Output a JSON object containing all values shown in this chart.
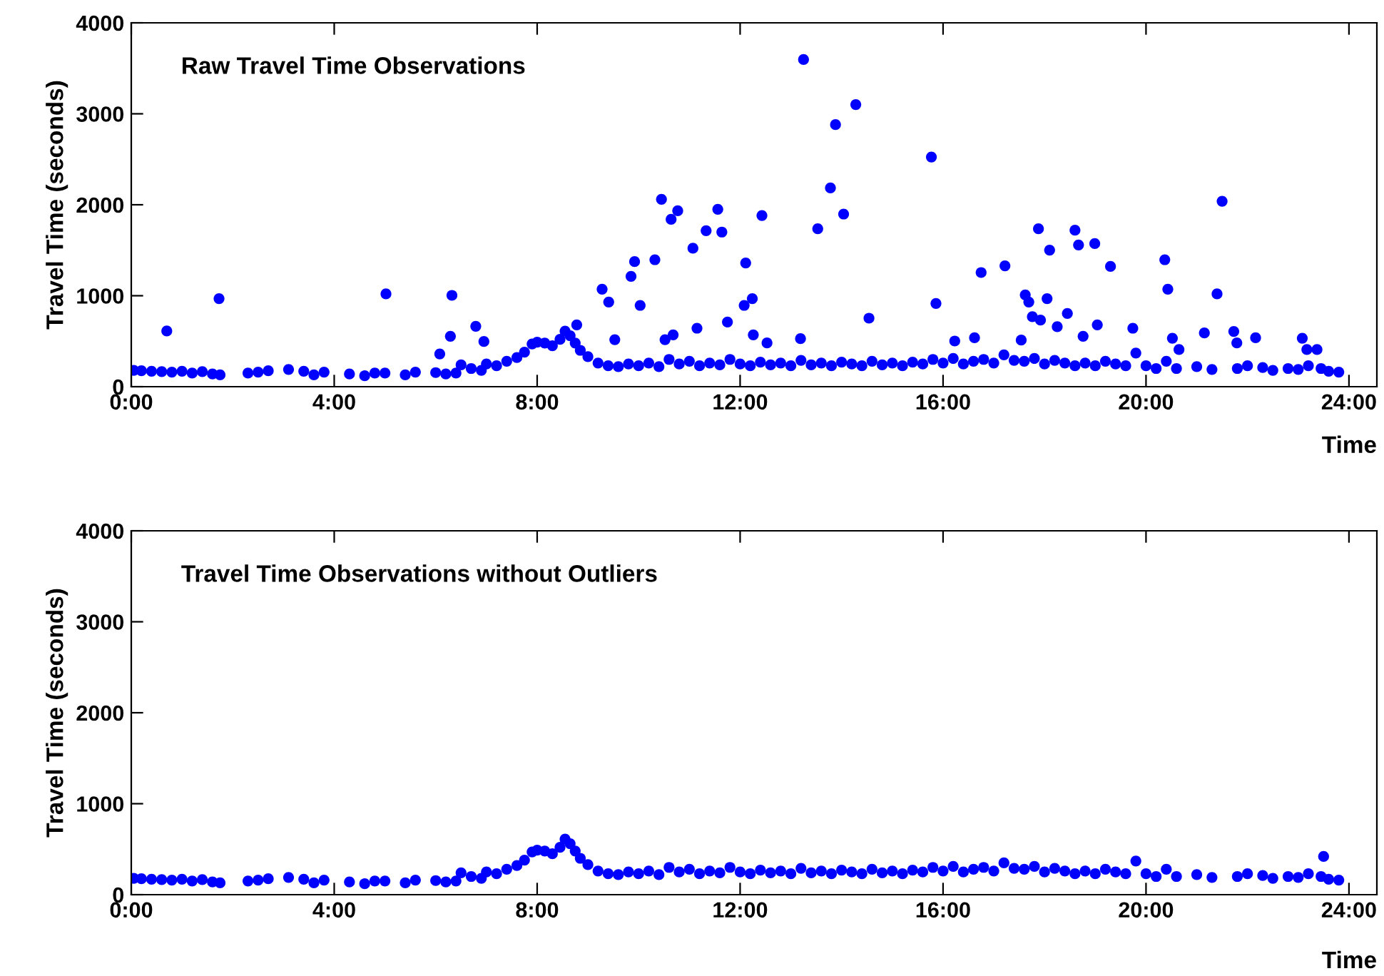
{
  "chart_data": [
    {
      "type": "scatter",
      "title": "Raw Travel Time Observations",
      "xlabel": "Time",
      "ylabel": "Travel Time (seconds)",
      "xlim": [
        0,
        24.55
      ],
      "ylim": [
        0,
        4000
      ],
      "xticks": [
        {
          "value": 0,
          "label": "0:00"
        },
        {
          "value": 4,
          "label": "4:00"
        },
        {
          "value": 8,
          "label": "8:00"
        },
        {
          "value": 12,
          "label": "12:00"
        },
        {
          "value": 16,
          "label": "16:00"
        },
        {
          "value": 20,
          "label": "20:00"
        },
        {
          "value": 24,
          "label": "24:00"
        }
      ],
      "yticks": [
        0,
        1000,
        2000,
        3000,
        4000
      ],
      "grid": false,
      "legend": false,
      "marker": "circle",
      "series": [
        {
          "color": "#0000ff",
          "x": [
            0.05,
            0.2,
            0.4,
            0.6,
            0.8,
            1.0,
            1.2,
            1.4,
            1.6,
            1.75,
            2.3,
            2.5,
            2.7,
            3.1,
            3.4,
            3.6,
            3.8,
            4.3,
            4.6,
            4.8,
            5.0,
            5.4,
            5.6,
            6.0,
            6.2,
            6.4,
            6.5,
            6.7,
            6.9,
            7.0,
            7.2,
            7.4,
            7.6,
            7.75,
            7.9,
            8.0,
            8.15,
            8.3,
            8.45,
            8.55,
            8.65,
            8.75,
            8.85,
            9.0,
            9.2,
            9.4,
            9.6,
            9.8,
            10.0,
            10.2,
            10.4,
            10.6,
            10.8,
            11.0,
            11.2,
            11.4,
            11.6,
            11.8,
            12.0,
            12.2,
            12.4,
            12.6,
            12.8,
            13.0,
            13.2,
            13.4,
            13.6,
            13.8,
            14.0,
            14.2,
            14.4,
            14.6,
            14.8,
            15.0,
            15.2,
            15.4,
            15.6,
            15.8,
            16.0,
            16.2,
            16.4,
            16.6,
            16.8,
            17.0,
            17.2,
            17.4,
            17.6,
            17.8,
            18.0,
            18.2,
            18.4,
            18.6,
            18.8,
            19.0,
            19.2,
            19.4,
            19.6,
            19.8,
            20.0,
            20.2,
            20.4,
            20.6,
            21.0,
            21.3,
            21.8,
            22.0,
            22.3,
            22.5,
            22.8,
            23.0,
            23.2,
            23.45,
            23.6,
            23.8,
            0.7,
            1.73,
            5.02,
            6.32,
            6.29,
            6.08,
            6.79,
            6.95,
            8.78,
            9.28,
            9.41,
            9.53,
            9.85,
            9.92,
            10.03,
            10.32,
            10.45,
            10.64,
            10.77,
            10.52,
            10.68,
            11.07,
            11.33,
            11.56,
            11.64,
            11.15,
            11.75,
            12.11,
            12.08,
            12.24,
            12.26,
            12.43,
            12.53,
            13.25,
            13.19,
            13.53,
            13.78,
            13.88,
            14.04,
            14.28,
            14.54,
            15.77,
            15.86,
            16.23,
            16.62,
            16.75,
            17.22,
            17.54,
            17.62,
            17.69,
            17.76,
            17.88,
            17.92,
            18.05,
            18.1,
            18.25,
            18.45,
            18.6,
            18.67,
            18.76,
            18.99,
            19.04,
            19.3,
            19.74,
            20.37,
            20.43,
            20.52,
            20.65,
            21.15,
            21.4,
            21.5,
            21.73,
            21.79,
            22.16,
            23.08,
            23.17,
            23.37
          ],
          "values": [
            180,
            175,
            170,
            165,
            160,
            170,
            150,
            165,
            140,
            130,
            150,
            160,
            175,
            190,
            170,
            130,
            160,
            140,
            120,
            150,
            150,
            130,
            160,
            155,
            140,
            150,
            240,
            200,
            180,
            250,
            230,
            280,
            320,
            380,
            470,
            490,
            480,
            450,
            520,
            610,
            560,
            480,
            400,
            330,
            260,
            230,
            220,
            250,
            230,
            260,
            220,
            300,
            250,
            280,
            230,
            260,
            240,
            300,
            250,
            230,
            270,
            240,
            260,
            230,
            290,
            240,
            260,
            230,
            270,
            250,
            230,
            280,
            240,
            260,
            230,
            270,
            250,
            300,
            260,
            310,
            250,
            280,
            300,
            260,
            350,
            290,
            280,
            310,
            250,
            290,
            260,
            230,
            260,
            230,
            280,
            250,
            230,
            370,
            230,
            200,
            280,
            200,
            220,
            190,
            200,
            230,
            210,
            180,
            200,
            190,
            230,
            200,
            170,
            160,
            612,
            968,
            1020,
            1004,
            554,
            360,
            664,
            497,
            680,
            1072,
            931,
            517,
            1213,
            1375,
            894,
            1396,
            2060,
            1840,
            1934,
            517,
            570,
            1522,
            1715,
            1950,
            1700,
            643,
            711,
            1360,
            894,
            968,
            570,
            1882,
            481,
            3597,
            528,
            1736,
            2185,
            2881,
            1898,
            3101,
            753,
            2525,
            915,
            502,
            538,
            1255,
            1329,
            512,
            1009,
            931,
            769,
            1736,
            732,
            968,
            1501,
            659,
            805,
            1720,
            1558,
            554,
            1573,
            680,
            1322,
            643,
            1396,
            1072,
            533,
            408,
            591,
            1020,
            2039,
            607,
            481,
            538,
            533,
            408,
            408
          ]
        }
      ]
    },
    {
      "type": "scatter",
      "title": "Travel Time Observations without Outliers",
      "xlabel": "Time",
      "ylabel": "Travel Time (seconds)",
      "xlim": [
        0,
        24.55
      ],
      "ylim": [
        0,
        4000
      ],
      "xticks": [
        {
          "value": 0,
          "label": "0:00"
        },
        {
          "value": 4,
          "label": "4:00"
        },
        {
          "value": 8,
          "label": "8:00"
        },
        {
          "value": 12,
          "label": "12:00"
        },
        {
          "value": 16,
          "label": "16:00"
        },
        {
          "value": 20,
          "label": "20:00"
        },
        {
          "value": 24,
          "label": "24:00"
        }
      ],
      "yticks": [
        0,
        1000,
        2000,
        3000,
        4000
      ],
      "grid": false,
      "legend": false,
      "marker": "circle",
      "series": [
        {
          "color": "#0000ff",
          "x": [
            0.05,
            0.2,
            0.4,
            0.6,
            0.8,
            1.0,
            1.2,
            1.4,
            1.6,
            1.75,
            2.3,
            2.5,
            2.7,
            3.1,
            3.4,
            3.6,
            3.8,
            4.3,
            4.6,
            4.8,
            5.0,
            5.4,
            5.6,
            6.0,
            6.2,
            6.4,
            6.5,
            6.7,
            6.9,
            7.0,
            7.2,
            7.4,
            7.6,
            7.75,
            7.9,
            8.0,
            8.15,
            8.3,
            8.45,
            8.55,
            8.65,
            8.75,
            8.85,
            9.0,
            9.2,
            9.4,
            9.6,
            9.8,
            10.0,
            10.2,
            10.4,
            10.6,
            10.8,
            11.0,
            11.2,
            11.4,
            11.6,
            11.8,
            12.0,
            12.2,
            12.4,
            12.6,
            12.8,
            13.0,
            13.2,
            13.4,
            13.6,
            13.8,
            14.0,
            14.2,
            14.4,
            14.6,
            14.8,
            15.0,
            15.2,
            15.4,
            15.6,
            15.8,
            16.0,
            16.2,
            16.4,
            16.6,
            16.8,
            17.0,
            17.2,
            17.4,
            17.6,
            17.8,
            18.0,
            18.2,
            18.4,
            18.6,
            18.8,
            19.0,
            19.2,
            19.4,
            19.6,
            19.8,
            20.0,
            20.2,
            20.4,
            20.6,
            21.0,
            21.3,
            21.8,
            22.0,
            22.3,
            22.5,
            22.8,
            23.0,
            23.2,
            23.45,
            23.6,
            23.8,
            23.5
          ],
          "values": [
            180,
            175,
            170,
            165,
            160,
            170,
            150,
            165,
            140,
            130,
            150,
            160,
            175,
            190,
            170,
            130,
            160,
            140,
            120,
            150,
            150,
            130,
            160,
            155,
            140,
            150,
            240,
            200,
            180,
            250,
            230,
            280,
            320,
            380,
            470,
            490,
            480,
            450,
            520,
            610,
            560,
            480,
            400,
            330,
            260,
            230,
            220,
            250,
            230,
            260,
            220,
            300,
            250,
            280,
            230,
            260,
            240,
            300,
            250,
            230,
            270,
            240,
            260,
            230,
            290,
            240,
            260,
            230,
            270,
            250,
            230,
            280,
            240,
            260,
            230,
            270,
            250,
            300,
            260,
            310,
            250,
            280,
            300,
            260,
            350,
            290,
            280,
            310,
            250,
            290,
            260,
            230,
            260,
            230,
            280,
            250,
            230,
            370,
            230,
            200,
            280,
            200,
            220,
            190,
            200,
            230,
            210,
            180,
            200,
            190,
            230,
            200,
            170,
            160,
            420
          ]
        }
      ]
    }
  ]
}
